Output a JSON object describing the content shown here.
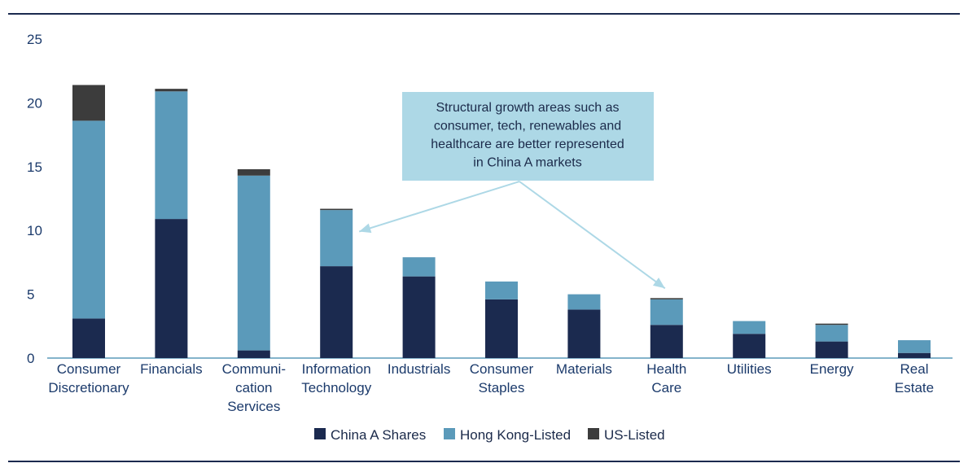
{
  "chart_data": {
    "type": "bar",
    "stacked": true,
    "title": "",
    "xlabel": "",
    "ylabel": "",
    "ylim": [
      0,
      25
    ],
    "yticks": [
      0,
      5,
      10,
      15,
      20,
      25
    ],
    "grid": false,
    "legend_position": "bottom-center",
    "categories": [
      "Consumer Discretionary",
      "Financials",
      "Communication Services",
      "Information Technology",
      "Industrials",
      "Consumer Staples",
      "Materials",
      "Health Care",
      "Utilities",
      "Energy",
      "Real Estate"
    ],
    "category_label_lines": [
      [
        "Consumer",
        "Discretionary"
      ],
      [
        "Financials"
      ],
      [
        "Communi-",
        "cation",
        "Services"
      ],
      [
        "Information",
        "Technology"
      ],
      [
        "Industrials"
      ],
      [
        "Consumer",
        "Staples"
      ],
      [
        "Materials"
      ],
      [
        "Health",
        "Care"
      ],
      [
        "Utilities"
      ],
      [
        "Energy"
      ],
      [
        "Real",
        "Estate"
      ]
    ],
    "series": [
      {
        "name": "China A Shares",
        "color": "#1b2a4f",
        "values": [
          3.1,
          10.9,
          0.6,
          7.2,
          6.4,
          4.6,
          3.8,
          2.6,
          1.9,
          1.3,
          0.4
        ]
      },
      {
        "name": "Hong Kong-Listed",
        "color": "#5b9aba",
        "values": [
          15.5,
          10.0,
          13.7,
          4.4,
          1.5,
          1.4,
          1.2,
          2.0,
          1.0,
          1.3,
          1.0
        ]
      },
      {
        "name": "US-Listed",
        "color": "#3c3c3c",
        "values": [
          2.8,
          0.2,
          0.5,
          0.1,
          0.0,
          0.0,
          0.0,
          0.1,
          0.0,
          0.1,
          0.0
        ]
      }
    ],
    "annotation": {
      "lines": [
        "Structural growth areas such as",
        "consumer, tech, renewables and",
        "healthcare are better represented",
        "in China A markets"
      ],
      "points_to": [
        "Information Technology",
        "Health Care"
      ],
      "box_color": "#add8e6"
    }
  }
}
